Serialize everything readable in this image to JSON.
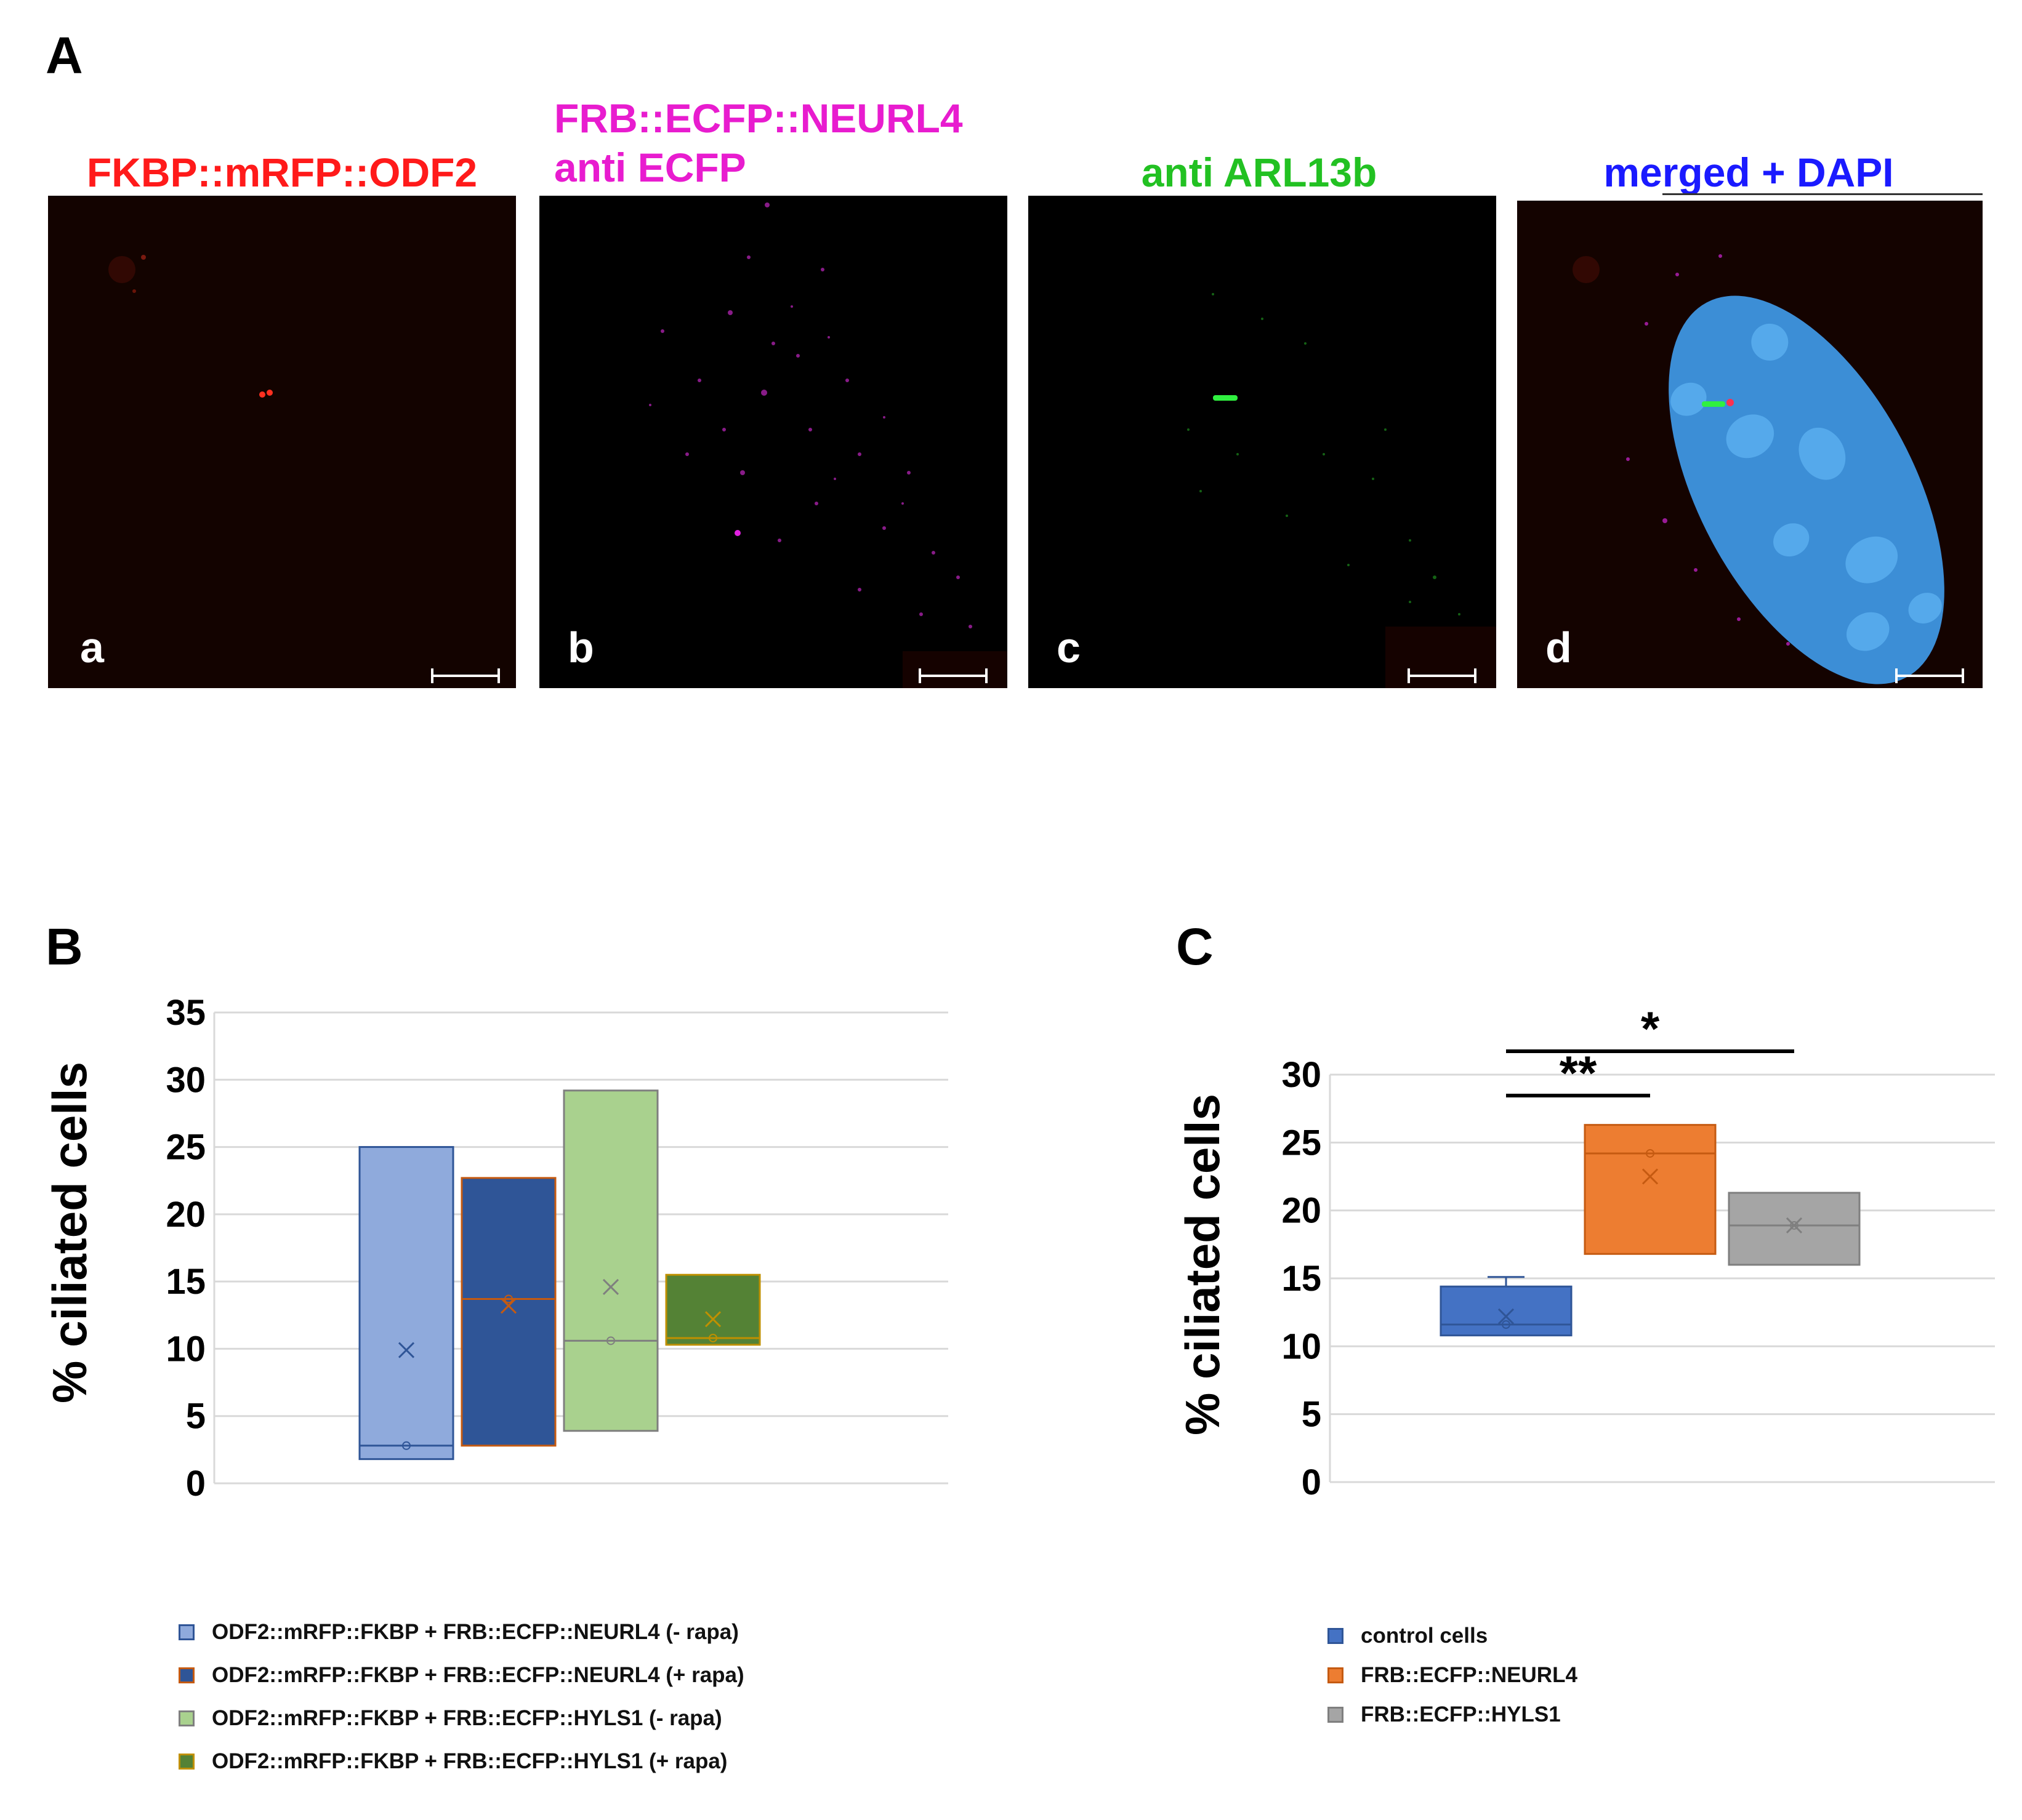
{
  "panelA": {
    "letter": "A",
    "images": [
      {
        "title_lines": [
          "FKBP::mRFP::ODF2"
        ],
        "title_color": "#ff1a1a",
        "sub": "a"
      },
      {
        "title_lines": [
          "FRB::ECFP::NEURL4",
          "anti ECFP"
        ],
        "title_color": "#e81ccf",
        "sub": "b"
      },
      {
        "title_lines": [
          "anti ARL13b"
        ],
        "title_color": "#22c122",
        "sub": "c"
      },
      {
        "title_lines": [
          "merged + DAPI"
        ],
        "title_color": "#1a1aff",
        "sub": "d"
      }
    ]
  },
  "chart_data": [
    {
      "panel": "B",
      "type": "box",
      "ylabel": "% ciliated cells",
      "ylim": [
        0,
        35
      ],
      "yticks": [
        0,
        5,
        10,
        15,
        20,
        25,
        30,
        35
      ],
      "grid": true,
      "legend_position": "bottom",
      "series": [
        {
          "name": "ODF2::mRFP::FKBP + FRB::ECFP::NEURL4 (- rapa)",
          "q1": 1.8,
          "q3": 25,
          "median": 2.8,
          "mean": 9.9,
          "fill": "#8faadc",
          "stroke": "#2f5597"
        },
        {
          "name": "ODF2::mRFP::FKBP + FRB::ECFP::NEURL4 (+ rapa)",
          "q1": 2.8,
          "q3": 22.7,
          "median": 13.7,
          "mean": 13.2,
          "fill": "#2f5597",
          "stroke": "#c55a11"
        },
        {
          "name": "ODF2::mRFP::FKBP + FRB::ECFP::HYLS1 (- rapa)",
          "q1": 3.9,
          "q3": 29.2,
          "median": 10.6,
          "mean": 14.6,
          "fill": "#a9d18e",
          "stroke": "#7f7f7f"
        },
        {
          "name": "ODF2::mRFP::FKBP + FRB::ECFP::HYLS1 (+ rapa)",
          "q1": 10.3,
          "q3": 15.5,
          "median": 10.8,
          "mean": 12.2,
          "fill": "#548235",
          "stroke": "#bf9000"
        }
      ]
    },
    {
      "panel": "C",
      "type": "box",
      "ylabel": "% ciliated cells",
      "ylim": [
        0,
        30
      ],
      "yticks": [
        0,
        5,
        10,
        15,
        20,
        25,
        30
      ],
      "grid": true,
      "legend_position": "bottom",
      "series": [
        {
          "name": "control cells",
          "q1": 10.8,
          "q3": 14.4,
          "median": 11.6,
          "mean": 12.2,
          "whisker_high": 15.1,
          "fill": "#4472c4",
          "stroke": "#2f5597"
        },
        {
          "name": "FRB::ECFP::NEURL4",
          "q1": 16.8,
          "q3": 26.3,
          "median": 24.2,
          "mean": 22.5,
          "fill": "#ed7d31",
          "stroke": "#c55a11"
        },
        {
          "name": "FRB::ECFP::HYLS1",
          "q1": 16.0,
          "q3": 21.3,
          "median": 18.9,
          "mean": 18.9,
          "fill": "#a5a5a5",
          "stroke": "#7f7f7f"
        }
      ],
      "significance": [
        {
          "from": 0,
          "to": 1,
          "label": "**"
        },
        {
          "from": 0,
          "to": 2,
          "label": "*"
        }
      ]
    }
  ],
  "labels": {
    "B": "B",
    "C": "C"
  }
}
